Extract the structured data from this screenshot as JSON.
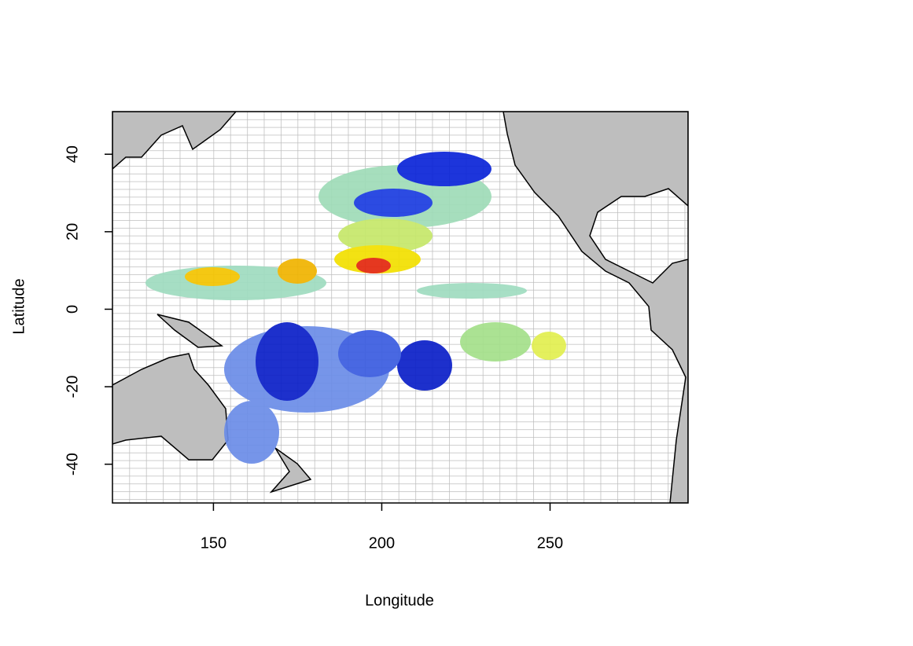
{
  "chart_data": {
    "type": "map",
    "xlabel": "Longitude",
    "ylabel": "Latitude",
    "xlim": [
      120,
      291
    ],
    "ylim": [
      -50,
      51
    ],
    "xticks": [
      150,
      200,
      250
    ],
    "yticks": [
      -40,
      -20,
      0,
      20,
      40
    ],
    "grid": true
  }
}
